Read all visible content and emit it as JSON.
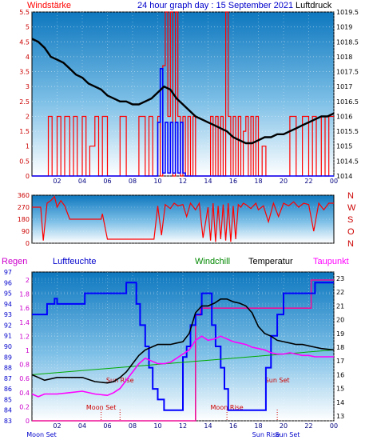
{
  "chart_data": [
    {
      "type": "line",
      "header": {
        "left": "Windstärke",
        "center": "24 hour graph day : 15 September 2021",
        "right": "Luftdruck"
      },
      "x_ticks": [
        "02",
        "04",
        "06",
        "08",
        "10",
        "12",
        "14",
        "16",
        "18",
        "20",
        "22",
        "00"
      ],
      "left_axis": {
        "ticks": [
          "5.5",
          "5",
          "4.5",
          "4",
          "3.5",
          "3",
          "2.5",
          "2",
          "1.5",
          "1",
          "0.5",
          "0"
        ],
        "range": [
          0,
          5.5
        ]
      },
      "right_axis": {
        "ticks": [
          "1019.5",
          "1019",
          "1018.5",
          "1018",
          "1017.5",
          "1017",
          "1016.5",
          "1016",
          "1015.5",
          "1015",
          "1014.5",
          "1014"
        ],
        "range": [
          1014,
          1019.5
        ]
      },
      "series": [
        {
          "name": "Luftdruck",
          "color": "#000000",
          "x": [
            0,
            0.5,
            1,
            1.5,
            2,
            2.5,
            3,
            3.5,
            4,
            4.5,
            5,
            5.5,
            6,
            6.5,
            7,
            7.5,
            8,
            8.5,
            9,
            9.5,
            10,
            10.5,
            11,
            11.5,
            12,
            12.5,
            13,
            13.5,
            14,
            14.5,
            15,
            15.5,
            16,
            16.5,
            17,
            17.5,
            18,
            18.5,
            19,
            19.5,
            20,
            20.5,
            21,
            21.5,
            22,
            22.5,
            23,
            23.5,
            24
          ],
          "y": [
            1018.6,
            1018.5,
            1018.3,
            1018.0,
            1017.9,
            1017.8,
            1017.6,
            1017.4,
            1017.3,
            1017.1,
            1017.0,
            1016.9,
            1016.7,
            1016.6,
            1016.5,
            1016.5,
            1016.4,
            1016.4,
            1016.5,
            1016.6,
            1016.8,
            1017.0,
            1016.9,
            1016.6,
            1016.4,
            1016.2,
            1016.0,
            1015.9,
            1015.8,
            1015.7,
            1015.6,
            1015.5,
            1015.3,
            1015.2,
            1015.1,
            1015.1,
            1015.2,
            1015.3,
            1015.3,
            1015.4,
            1015.4,
            1015.5,
            1015.6,
            1015.7,
            1015.8,
            1015.9,
            1016.0,
            1016.0,
            1016.1
          ]
        },
        {
          "name": "Windstärke",
          "color": "#ff0000",
          "x": [
            0,
            1,
            1.3,
            1.6,
            2,
            2.3,
            2.6,
            3,
            3.3,
            3.6,
            4,
            4.3,
            4.6,
            5,
            5.3,
            5.6,
            6,
            6.5,
            7,
            7.5,
            8,
            8.5,
            9,
            9.3,
            9.6,
            10,
            10.2,
            10.4,
            10.6,
            10.8,
            11,
            11.2,
            11.4,
            11.6,
            11.8,
            12,
            12.2,
            12.4,
            12.6,
            12.8,
            13,
            13.5,
            14,
            14.2,
            14.4,
            14.6,
            14.8,
            15,
            15.2,
            15.4,
            15.6,
            15.8,
            16,
            16.2,
            16.4,
            16.6,
            16.8,
            17,
            17.2,
            17.4,
            17.6,
            17.8,
            18,
            18.3,
            18.6,
            19,
            19.5,
            20,
            20.5,
            21,
            21.5,
            22,
            22.3,
            22.6,
            23,
            23.3,
            23.6,
            24
          ],
          "y": [
            0,
            0,
            2,
            0,
            2,
            0,
            2,
            0,
            2,
            0,
            2,
            0,
            1,
            2,
            0,
            2,
            0,
            0,
            2,
            0,
            0,
            2,
            0,
            2,
            0,
            2,
            0,
            3.7,
            5.5,
            2,
            5.5,
            0,
            5.5,
            2,
            0,
            2,
            0,
            2,
            0,
            2,
            0,
            0,
            0,
            2,
            0,
            2,
            0,
            2,
            0,
            5.5,
            2,
            0,
            2,
            0,
            2,
            0,
            1.5,
            2,
            0,
            2,
            0,
            2,
            0,
            1,
            0,
            0,
            0,
            0,
            2,
            0,
            2,
            0,
            2,
            0,
            2,
            0,
            2,
            2
          ]
        },
        {
          "name": "Windböen",
          "color": "#0000ff",
          "x": [
            0,
            9.8,
            10,
            10.2,
            10.4,
            10.6,
            10.8,
            11,
            11.2,
            11.4,
            11.6,
            11.8,
            12,
            12.2,
            13,
            24
          ],
          "y": [
            0,
            0,
            1.8,
            3.6,
            0.1,
            1.8,
            0.1,
            1.8,
            0.1,
            1.8,
            0.1,
            1.8,
            0.1,
            0,
            0,
            0
          ]
        }
      ]
    },
    {
      "type": "line",
      "side_labels": [
        "N",
        "W",
        "S",
        "O",
        "N"
      ],
      "y_ticks": [
        "360",
        "270",
        "180",
        "90",
        "0"
      ],
      "range": [
        0,
        360
      ],
      "series": [
        {
          "name": "Windrichtung",
          "color": "#ff0000",
          "x": [
            0,
            0.7,
            0.9,
            1.2,
            1.5,
            1.8,
            2,
            2.3,
            2.6,
            3,
            4,
            5,
            5.5,
            5.6,
            6,
            7,
            8,
            9,
            9.7,
            10,
            10.3,
            10.6,
            11,
            11.3,
            11.6,
            12,
            12.3,
            12.6,
            13,
            13.3,
            13.6,
            14,
            14.2,
            14.4,
            14.6,
            14.8,
            15,
            15.2,
            15.4,
            15.6,
            15.8,
            16,
            16.2,
            16.4,
            16.6,
            16.8,
            17,
            17.4,
            17.8,
            18,
            18.4,
            18.8,
            19.2,
            19.6,
            20,
            20.4,
            20.8,
            21.2,
            21.6,
            22,
            22.4,
            22.8,
            23.2,
            23.6,
            24
          ],
          "y": [
            270,
            270,
            20,
            300,
            320,
            350,
            270,
            320,
            280,
            180,
            180,
            180,
            180,
            220,
            30,
            30,
            30,
            30,
            30,
            280,
            60,
            290,
            260,
            300,
            280,
            290,
            200,
            300,
            250,
            300,
            40,
            270,
            20,
            300,
            10,
            280,
            30,
            290,
            20,
            300,
            10,
            280,
            30,
            290,
            270,
            300,
            290,
            260,
            300,
            250,
            280,
            160,
            300,
            200,
            300,
            280,
            310,
            270,
            300,
            290,
            90,
            300,
            250,
            300,
            300
          ]
        }
      ]
    },
    {
      "type": "line",
      "header": {
        "regen": "Regen",
        "feuchte": "Luftfeuchte",
        "windchill": "Windchill",
        "temperatur": "Temperatur",
        "taupunkt": "Taupunkt"
      },
      "x_ticks": [
        "02",
        "04",
        "06",
        "08",
        "10",
        "12",
        "14",
        "16",
        "18",
        "20",
        "22",
        "00"
      ],
      "events": [
        {
          "label": "Moon Set",
          "hour": 5.5
        },
        {
          "label": "Sun Rise",
          "hour": 7
        },
        {
          "label": "Moon Rise",
          "hour": 15.5
        },
        {
          "label": "Sun Set",
          "hour": 19.5
        }
      ],
      "bottom_labels": [
        "Moon Set",
        "Sun Rise",
        "Sun Set"
      ],
      "rain_axis": {
        "ticks": [
          "2",
          "1.8",
          "1.6",
          "1.4",
          "1.2",
          "1",
          "0.8",
          "0.6",
          "0.4",
          "0.2",
          "0"
        ],
        "range": [
          0,
          2
        ]
      },
      "humidity_axis": {
        "ticks": [
          "97",
          "96",
          "95",
          "94",
          "93",
          "92",
          "91",
          "90",
          "89",
          "88",
          "87",
          "86",
          "85",
          "84",
          "83"
        ],
        "range": [
          83,
          97
        ]
      },
      "temp_axis": {
        "ticks": [
          "23",
          "22",
          "21",
          "20",
          "19",
          "18",
          "17",
          "16",
          "15",
          "14",
          "13"
        ],
        "range": [
          13,
          23
        ]
      },
      "series": [
        {
          "name": "Luftfeuchte",
          "color": "#0000ff",
          "x": [
            0,
            1,
            1.2,
            1.5,
            1.8,
            2,
            4,
            4.2,
            7,
            7.5,
            8,
            8.3,
            8.6,
            9,
            9.3,
            9.6,
            10,
            10.5,
            11,
            11.5,
            12,
            12.3,
            12.6,
            13,
            13.5,
            14,
            14.3,
            14.6,
            15,
            15.3,
            15.6,
            16,
            16.5,
            17,
            17.5,
            18,
            18.3,
            18.6,
            19,
            19.5,
            20,
            21,
            22,
            22.5,
            23,
            24
          ],
          "y": [
            93,
            93,
            94,
            94,
            94.5,
            94,
            94,
            95,
            95,
            96,
            96,
            94,
            92,
            90,
            88,
            86,
            85,
            84,
            84,
            84,
            89,
            90,
            92,
            93,
            95,
            95,
            92,
            90,
            88,
            86,
            84,
            84,
            84,
            84,
            84,
            84,
            84,
            88,
            91,
            93,
            95,
            95,
            95,
            96,
            96,
            96
          ]
        },
        {
          "name": "Temperatur",
          "color": "#000000",
          "x": [
            0,
            0.5,
            1,
            2,
            3,
            4,
            5,
            6,
            6.5,
            7,
            7.5,
            8,
            8.5,
            9,
            9.5,
            10,
            10.5,
            11,
            11.5,
            12,
            12.5,
            13,
            13.5,
            14,
            14.5,
            15,
            15.5,
            16,
            16.5,
            17,
            17.5,
            18,
            18.5,
            19,
            19.5,
            20,
            20.5,
            21,
            21.5,
            22,
            22.5,
            23,
            24
          ],
          "y": [
            16,
            15.8,
            15.6,
            15.8,
            15.8,
            15.8,
            15.5,
            15.4,
            15.5,
            15.8,
            16.2,
            16.8,
            17.4,
            17.8,
            18,
            18.2,
            18.2,
            18.2,
            18.3,
            18.4,
            19,
            20.5,
            21,
            21,
            21.2,
            21.5,
            21.5,
            21.3,
            21.2,
            21,
            20.5,
            19.5,
            19,
            18.8,
            18.5,
            18.4,
            18.3,
            18.2,
            18.2,
            18.1,
            18,
            17.9,
            17.8
          ]
        },
        {
          "name": "Taupunkt",
          "color": "#ff00ff",
          "x": [
            0,
            0.5,
            1,
            2,
            3,
            4,
            5,
            6,
            6.5,
            7,
            7.5,
            8,
            8.5,
            9,
            9.5,
            10,
            10.5,
            11,
            11.5,
            12,
            12.5,
            13,
            13.5,
            14,
            14.5,
            15,
            15.5,
            16,
            16.5,
            17,
            17.5,
            18,
            18.5,
            19,
            19.5,
            20,
            20.5,
            21,
            21.5,
            22,
            22.5,
            23,
            24
          ],
          "y": [
            14.6,
            14.4,
            14.6,
            14.6,
            14.7,
            14.8,
            14.6,
            14.5,
            14.7,
            15,
            15.6,
            16.2,
            16.8,
            17.2,
            17,
            16.8,
            16.8,
            16.9,
            17.2,
            17.5,
            17.8,
            18.5,
            18.8,
            18.5,
            18.6,
            18.8,
            18.6,
            18.4,
            18.3,
            18.2,
            18,
            17.9,
            17.8,
            17.6,
            17.5,
            17.5,
            17.6,
            17.5,
            17.4,
            17.4,
            17.3,
            17.3,
            17.3
          ]
        },
        {
          "name": "Windchill",
          "color": "#00aa00",
          "x": [
            0,
            24
          ],
          "y": [
            16,
            17.8
          ]
        },
        {
          "name": "Regen",
          "color": "#ee1199",
          "x": [
            0,
            12.9,
            13,
            13.4,
            14,
            15,
            16,
            17,
            18,
            19,
            20,
            21,
            22,
            22.2,
            24
          ],
          "y": [
            0,
            0,
            1.5,
            1.6,
            1.6,
            1.6,
            1.6,
            1.6,
            1.6,
            1.6,
            1.6,
            1.6,
            1.6,
            2,
            2
          ]
        }
      ]
    }
  ]
}
